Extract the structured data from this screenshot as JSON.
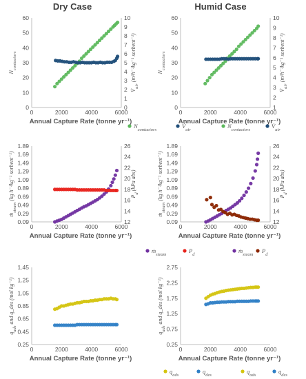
{
  "titles": {
    "dry": "Dry Case",
    "humid": "Humid Case"
  },
  "chart_data": [
    {
      "id": "dry-top",
      "type": "scatter",
      "title": "Dry Case",
      "xlabel": "Annual Capture Rate (tonne yr⁻¹)",
      "ylabel": "N_contactors",
      "y2label": "V̇_air (m³h⁻¹kg⁻¹ sorbent⁻¹)",
      "xlim": [
        0,
        6000
      ],
      "xticks": [
        "0",
        "2000",
        "4000",
        "6000"
      ],
      "ylim": [
        0,
        60
      ],
      "yticks": [
        "0",
        "10",
        "20",
        "30",
        "40",
        "50",
        "60"
      ],
      "y2lim": [
        0,
        10
      ],
      "y2ticks": [
        "0",
        "1",
        "2",
        "3",
        "4",
        "5",
        "6",
        "7",
        "8",
        "9",
        "10"
      ],
      "legend": [
        "N_contactors",
        "V̇_air"
      ],
      "series": [
        {
          "name": "N_contactors",
          "axis": "left",
          "color": "#5cb85c",
          "x": [
            1550,
            1700,
            1850,
            2000,
            2150,
            2300,
            2450,
            2600,
            2750,
            2900,
            3050,
            3200,
            3350,
            3500,
            3650,
            3800,
            3950,
            4100,
            4250,
            4400,
            4550,
            4700,
            4850,
            5000,
            5150,
            5300,
            5450,
            5550,
            5650,
            5750
          ],
          "y": [
            14,
            16,
            17.5,
            19,
            20.5,
            22,
            23.5,
            25,
            26.5,
            28,
            29.5,
            31,
            33,
            34.5,
            36,
            37.5,
            39,
            40.5,
            42,
            43.5,
            45,
            46.5,
            48,
            49.5,
            51,
            52.5,
            54,
            55,
            56,
            57
          ]
        },
        {
          "name": "V̇_air",
          "axis": "right",
          "color": "#1f4e79",
          "x": [
            1600,
            1750,
            1900,
            2050,
            2200,
            2350,
            2500,
            2650,
            2800,
            2950,
            3100,
            3250,
            3400,
            3550,
            3700,
            3850,
            4000,
            4150,
            4300,
            4450,
            4600,
            4750,
            4900,
            5050,
            5200,
            5350,
            5500,
            5600,
            5700,
            5750
          ],
          "y": [
            5.25,
            5.2,
            5.2,
            5.15,
            5.1,
            5.1,
            5.05,
            5.05,
            5.1,
            5.05,
            5.0,
            5.0,
            5.05,
            5.0,
            5.0,
            5.0,
            5.0,
            5.05,
            5.0,
            5.0,
            5.05,
            5.0,
            5.0,
            5.05,
            5.05,
            5.05,
            5.15,
            5.25,
            5.5,
            5.7
          ]
        }
      ]
    },
    {
      "id": "humid-top",
      "type": "scatter",
      "title": "Humid Case",
      "xlabel": "Annual Capture Rate (tonne yr⁻¹)",
      "ylabel": "N_contactors",
      "y2label": "V̇_air (m³h⁻¹kg⁻¹ sorbent⁻¹)",
      "xlim": [
        0,
        6000
      ],
      "xticks": [
        "0",
        "2000",
        "4000",
        "6000"
      ],
      "ylim": [
        0,
        60
      ],
      "yticks": [
        "0",
        "10",
        "20",
        "30",
        "40",
        "50",
        "60"
      ],
      "y2lim": [
        1,
        10
      ],
      "y2ticks": [
        "1",
        "2",
        "3",
        "4",
        "5",
        "6",
        "7",
        "8",
        "9",
        "10"
      ],
      "legend": [
        "N_contactors",
        "V̇_air"
      ],
      "series": [
        {
          "name": "N_contactors",
          "axis": "left",
          "color": "#5cb85c",
          "x": [
            1650,
            1800,
            1950,
            2100,
            2250,
            2400,
            2550,
            2700,
            2850,
            3000,
            3150,
            3300,
            3450,
            3600,
            3750,
            3900,
            4050,
            4200,
            4350,
            4500,
            4650,
            4800,
            4950,
            5100,
            5200
          ],
          "y": [
            16,
            18,
            20,
            22,
            23.5,
            25,
            26.5,
            28,
            29.5,
            31,
            33,
            34.5,
            36,
            37.5,
            39,
            41,
            42.5,
            44,
            45.5,
            47,
            48.5,
            50,
            51.5,
            53,
            54.5
          ]
        },
        {
          "name": "V̇_air",
          "axis": "right",
          "color": "#1f4e79",
          "x": [
            1700,
            1850,
            2000,
            2150,
            2300,
            2450,
            2600,
            2750,
            2900,
            3050,
            3200,
            3350,
            3500,
            3650,
            3800,
            3950,
            4100,
            4250,
            4400,
            4550,
            4700,
            4850,
            5000,
            5150,
            5200
          ],
          "y": [
            5.85,
            5.85,
            5.85,
            5.85,
            5.85,
            5.85,
            5.85,
            5.9,
            5.9,
            5.9,
            5.85,
            5.9,
            5.9,
            5.9,
            5.9,
            5.9,
            5.9,
            5.9,
            5.9,
            5.9,
            5.9,
            5.9,
            5.9,
            5.9,
            5.9
          ]
        }
      ]
    },
    {
      "id": "dry-mid",
      "type": "scatter",
      "xlabel": "Annual Capture Rate (tonne yr⁻¹)",
      "ylabel": "ṁ_steam (kg h⁻¹kg⁻¹ sorbent⁻¹)",
      "y2label": "P_d (kPa abs)",
      "xlim": [
        0,
        6000
      ],
      "xticks": [
        "0",
        "2000",
        "4000",
        "6000"
      ],
      "ylim": [
        0.09,
        1.89
      ],
      "yticks": [
        "0.09",
        "0.29",
        "0.49",
        "0.69",
        "0.89",
        "1.09",
        "1.29",
        "1.49",
        "1.69",
        "1.89"
      ],
      "y2lim": [
        12,
        26
      ],
      "y2ticks": [
        "12",
        "14",
        "16",
        "18",
        "20",
        "22",
        "24",
        "26"
      ],
      "legend": [
        "ṁ_steam",
        "P_d"
      ],
      "series": [
        {
          "name": "ṁ_steam",
          "axis": "left",
          "color": "#7030a0",
          "x": [
            1550,
            1700,
            1850,
            2000,
            2150,
            2300,
            2450,
            2600,
            2750,
            2900,
            3050,
            3200,
            3350,
            3500,
            3650,
            3800,
            3950,
            4100,
            4250,
            4400,
            4550,
            4700,
            4850,
            5000,
            5150,
            5300,
            5400,
            5500,
            5600,
            5700
          ],
          "y": [
            0.09,
            0.11,
            0.13,
            0.15,
            0.18,
            0.21,
            0.24,
            0.27,
            0.3,
            0.33,
            0.36,
            0.39,
            0.42,
            0.45,
            0.47,
            0.5,
            0.53,
            0.56,
            0.59,
            0.62,
            0.66,
            0.7,
            0.75,
            0.8,
            0.87,
            0.95,
            1.03,
            1.11,
            1.2,
            1.31
          ]
        },
        {
          "name": "P_d",
          "axis": "right",
          "color": "#e8221b",
          "x": [
            1550,
            1700,
            1850,
            2000,
            2150,
            2300,
            2450,
            2600,
            2750,
            2900,
            3050,
            3200,
            3350,
            3500,
            3650,
            3800,
            3950,
            4100,
            4250,
            4400,
            4550,
            4700,
            4850,
            5000,
            5150,
            5300,
            5450,
            5600,
            5700
          ],
          "y": [
            18.0,
            18.0,
            18.0,
            18.0,
            18.0,
            18.0,
            18.0,
            18.0,
            18.0,
            18.0,
            17.9,
            17.9,
            17.9,
            17.9,
            17.9,
            17.9,
            17.9,
            17.9,
            17.9,
            17.9,
            17.9,
            17.9,
            17.9,
            17.8,
            17.8,
            17.8,
            17.8,
            17.8,
            17.8
          ]
        }
      ]
    },
    {
      "id": "humid-mid",
      "type": "scatter",
      "xlabel": "Annual Capture Rate (tonne yr⁻¹)",
      "ylabel": "ṁ_steam (kg h⁻¹kg⁻¹ sorbent⁻¹)",
      "y2label": "P_d (kPa abs)",
      "xlim": [
        0,
        6000
      ],
      "xticks": [
        "0",
        "2000",
        "4000",
        "6000"
      ],
      "ylim": [
        0.09,
        1.89
      ],
      "yticks": [
        "0.09",
        "0.29",
        "0.49",
        "0.69",
        "0.89",
        "1.09",
        "1.29",
        "1.49",
        "1.69",
        "1.89"
      ],
      "y2lim": [
        12,
        26
      ],
      "y2ticks": [
        "12",
        "14",
        "16",
        "18",
        "20",
        "22",
        "24",
        "26"
      ],
      "legend": [
        "ṁ_steam",
        "P_d"
      ],
      "series": [
        {
          "name": "ṁ_steam",
          "axis": "left",
          "color": "#7030a0",
          "x": [
            1700,
            1850,
            2000,
            2150,
            2300,
            2450,
            2600,
            2750,
            2900,
            3050,
            3200,
            3350,
            3500,
            3650,
            3800,
            3950,
            4100,
            4250,
            4400,
            4550,
            4700,
            4850,
            5000,
            5100,
            5150,
            5200
          ],
          "y": [
            0.09,
            0.11,
            0.14,
            0.17,
            0.2,
            0.23,
            0.26,
            0.29,
            0.32,
            0.36,
            0.39,
            0.42,
            0.46,
            0.5,
            0.54,
            0.59,
            0.65,
            0.72,
            0.8,
            0.89,
            1.0,
            1.13,
            1.3,
            1.45,
            1.58,
            1.72
          ]
        },
        {
          "name": "P_d",
          "axis": "right",
          "color": "#8b2500",
          "x": [
            1750,
            2000,
            2100,
            2250,
            2400,
            2550,
            2700,
            2850,
            3000,
            3150,
            3300,
            3450,
            3600,
            3750,
            3900,
            4050,
            4200,
            4350,
            4500,
            4650,
            4800,
            4950,
            5100,
            5200
          ],
          "y": [
            16.1,
            16.5,
            15.2,
            14.7,
            15.0,
            14.2,
            14.3,
            13.9,
            13.7,
            13.4,
            13.6,
            13.3,
            13.4,
            13.2,
            13.1,
            12.9,
            12.8,
            12.7,
            12.6,
            12.5,
            12.5,
            12.4,
            12.3,
            12.3
          ]
        }
      ]
    },
    {
      "id": "dry-bottom",
      "type": "scatter",
      "xlabel": "Annual Capture Rate (tonne yr⁻¹)",
      "ylabel": "q_ads and q_des (mol kg⁻¹)",
      "xlim": [
        0,
        6000
      ],
      "xticks": [
        "0",
        "2000",
        "4000",
        "6000"
      ],
      "ylim": [
        0.25,
        1.45
      ],
      "yticks": [
        "0.25",
        "0.45",
        "0.65",
        "0.85",
        "1.05",
        "1.25",
        "1.45"
      ],
      "legend": [
        "q_ads",
        "q_des"
      ],
      "series": [
        {
          "name": "q_ads",
          "axis": "left",
          "color": "#d4c40f",
          "x": [
            1550,
            1700,
            1850,
            2000,
            2150,
            2300,
            2450,
            2600,
            2750,
            2900,
            3050,
            3200,
            3350,
            3500,
            3650,
            3800,
            3950,
            4100,
            4250,
            4400,
            4550,
            4700,
            4850,
            5000,
            5150,
            5300,
            5450,
            5600,
            5700
          ],
          "y": [
            0.8,
            0.81,
            0.83,
            0.85,
            0.85,
            0.86,
            0.87,
            0.88,
            0.88,
            0.89,
            0.9,
            0.9,
            0.91,
            0.92,
            0.92,
            0.92,
            0.93,
            0.93,
            0.94,
            0.94,
            0.95,
            0.95,
            0.96,
            0.96,
            0.96,
            0.97,
            0.96,
            0.96,
            0.95
          ]
        },
        {
          "name": "q_des",
          "axis": "left",
          "color": "#2f80c6",
          "x": [
            1550,
            1700,
            1850,
            2000,
            2150,
            2300,
            2450,
            2600,
            2750,
            2900,
            3050,
            3200,
            3350,
            3500,
            3650,
            3800,
            3950,
            4100,
            4250,
            4400,
            4550,
            4700,
            4850,
            5000,
            5150,
            5300,
            5450,
            5600,
            5700
          ],
          "y": [
            0.55,
            0.55,
            0.55,
            0.55,
            0.55,
            0.55,
            0.55,
            0.55,
            0.55,
            0.55,
            0.56,
            0.56,
            0.56,
            0.56,
            0.56,
            0.56,
            0.56,
            0.56,
            0.56,
            0.56,
            0.56,
            0.56,
            0.56,
            0.56,
            0.56,
            0.56,
            0.56,
            0.56,
            0.56
          ]
        }
      ]
    },
    {
      "id": "humid-bottom",
      "type": "scatter",
      "xlabel": "Annual Capture Rate (tonne yr⁻¹)",
      "ylabel": "q_ads and q_des (mol kg⁻¹)",
      "xlim": [
        0,
        6000
      ],
      "xticks": [
        "0",
        "2000",
        "4000",
        "6000"
      ],
      "ylim": [
        0.25,
        2.75
      ],
      "yticks": [
        "0.25",
        "0.75",
        "1.25",
        "1.75",
        "2.25",
        "2.75"
      ],
      "legend": [
        "q_ads",
        "q_des"
      ],
      "series": [
        {
          "name": "q_ads",
          "axis": "left",
          "color": "#d4c40f",
          "x": [
            1700,
            1850,
            2000,
            2150,
            2300,
            2450,
            2600,
            2750,
            2900,
            3050,
            3200,
            3350,
            3500,
            3650,
            3800,
            3950,
            4100,
            4250,
            4400,
            4550,
            4700,
            4850,
            5000,
            5100,
            5200
          ],
          "y": [
            1.75,
            1.8,
            1.85,
            1.88,
            1.9,
            1.93,
            1.95,
            1.97,
            1.98,
            2.0,
            2.01,
            2.02,
            2.03,
            2.04,
            2.05,
            2.06,
            2.07,
            2.07,
            2.08,
            2.09,
            2.1,
            2.1,
            2.11,
            2.11,
            2.11
          ]
        },
        {
          "name": "q_des",
          "axis": "left",
          "color": "#2f80c6",
          "x": [
            1700,
            1850,
            2000,
            2150,
            2300,
            2450,
            2600,
            2750,
            2900,
            3050,
            3200,
            3350,
            3500,
            3650,
            3800,
            3950,
            4100,
            4250,
            4400,
            4550,
            4700,
            4850,
            5000,
            5100,
            5200
          ],
          "y": [
            1.55,
            1.57,
            1.6,
            1.6,
            1.61,
            1.62,
            1.62,
            1.63,
            1.63,
            1.63,
            1.64,
            1.64,
            1.64,
            1.64,
            1.65,
            1.65,
            1.65,
            1.65,
            1.65,
            1.65,
            1.66,
            1.66,
            1.66,
            1.66,
            1.66
          ]
        }
      ]
    }
  ]
}
